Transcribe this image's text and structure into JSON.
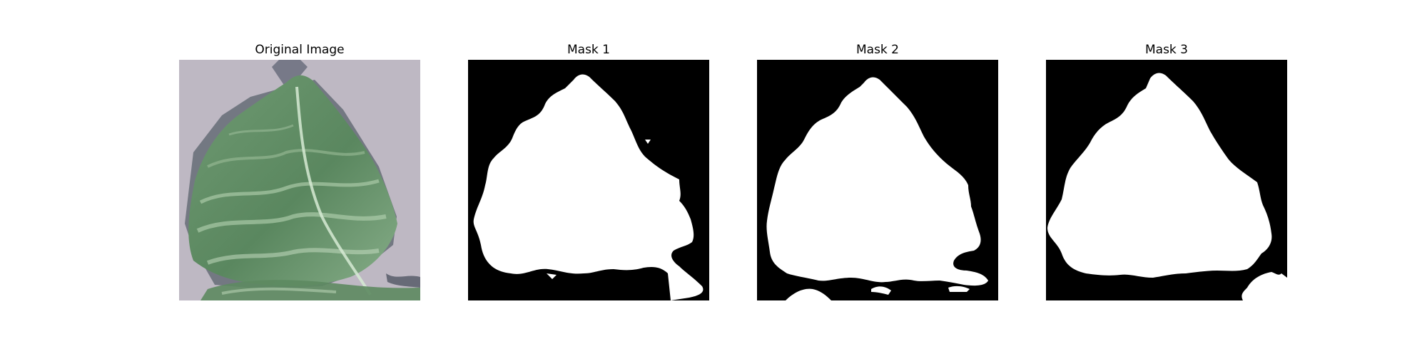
{
  "figure": {
    "panels": [
      {
        "title": "Original Image",
        "kind": "photo"
      },
      {
        "title": "Mask 1",
        "kind": "mask"
      },
      {
        "title": "Mask 2",
        "kind": "mask"
      },
      {
        "title": "Mask 3",
        "kind": "mask"
      }
    ]
  },
  "colors": {
    "mask_background": "#000000",
    "mask_foreground": "#ffffff",
    "photo_background": "#b9b4bd",
    "leaf_dark": "#3f6a45",
    "leaf_mid": "#5f8b63",
    "leaf_light": "#a8c9a7"
  }
}
